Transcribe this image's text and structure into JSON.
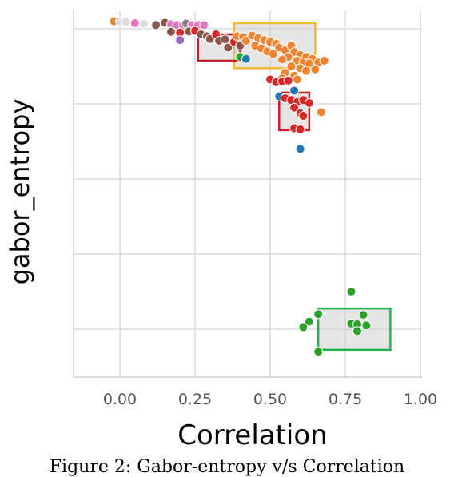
{
  "caption": "Figure 2: Gabor-entropy v/s Correlation",
  "chart_data": {
    "type": "scatter",
    "title": "",
    "xlabel": "Correlation",
    "ylabel": "gabor_entropy",
    "xlim": [
      -0.15,
      1.0
    ],
    "ylim": [
      0,
      100
    ],
    "xticks": [
      "0.00",
      "0.25",
      "0.50",
      "0.75",
      "1.00"
    ],
    "xtick_values": [
      0.0,
      0.25,
      0.5,
      0.75,
      1.0
    ],
    "ytick_values": [
      20,
      40,
      60,
      80,
      100
    ],
    "grid": true,
    "colors": {
      "orange": "#ee8430",
      "red": "#d62728",
      "brown": "#8c564b",
      "pink": "#e377c2",
      "green": "#2ca02c",
      "blue": "#1f77b4",
      "purple": "#9467bd",
      "gray": "#888888",
      "light": "#dddddd"
    },
    "points": [
      {
        "x": -0.02,
        "y": 102.0,
        "color": "orange"
      },
      {
        "x": 0.0,
        "y": 102.0,
        "color": "light"
      },
      {
        "x": 0.02,
        "y": 101.8,
        "color": "light"
      },
      {
        "x": 0.05,
        "y": 101.5,
        "color": "pink"
      },
      {
        "x": 0.08,
        "y": 101.3,
        "color": "light"
      },
      {
        "x": 0.12,
        "y": 101.0,
        "color": "brown"
      },
      {
        "x": 0.15,
        "y": 101.6,
        "color": "brown"
      },
      {
        "x": 0.17,
        "y": 101.2,
        "color": "pink"
      },
      {
        "x": 0.19,
        "y": 101.0,
        "color": "pink"
      },
      {
        "x": 0.21,
        "y": 101.0,
        "color": "pink"
      },
      {
        "x": 0.22,
        "y": 101.4,
        "color": "gray"
      },
      {
        "x": 0.24,
        "y": 101.0,
        "color": "pink"
      },
      {
        "x": 0.26,
        "y": 101.0,
        "color": "pink"
      },
      {
        "x": 0.28,
        "y": 101.0,
        "color": "pink"
      },
      {
        "x": 0.17,
        "y": 99.2,
        "color": "brown"
      },
      {
        "x": 0.2,
        "y": 99.0,
        "color": "red"
      },
      {
        "x": 0.23,
        "y": 99.3,
        "color": "brown"
      },
      {
        "x": 0.2,
        "y": 97.0,
        "color": "purple"
      },
      {
        "x": 0.25,
        "y": 99.5,
        "color": "red"
      },
      {
        "x": 0.27,
        "y": 98.5,
        "color": "brown"
      },
      {
        "x": 0.29,
        "y": 98.0,
        "color": "brown"
      },
      {
        "x": 0.3,
        "y": 97.3,
        "color": "brown"
      },
      {
        "x": 0.32,
        "y": 98.5,
        "color": "red"
      },
      {
        "x": 0.33,
        "y": 96.8,
        "color": "brown"
      },
      {
        "x": 0.35,
        "y": 97.2,
        "color": "brown"
      },
      {
        "x": 0.36,
        "y": 95.0,
        "color": "brown"
      },
      {
        "x": 0.38,
        "y": 96.5,
        "color": "red"
      },
      {
        "x": 0.39,
        "y": 98.0,
        "color": "orange"
      },
      {
        "x": 0.4,
        "y": 95.5,
        "color": "brown"
      },
      {
        "x": 0.41,
        "y": 97.8,
        "color": "orange"
      },
      {
        "x": 0.42,
        "y": 96.8,
        "color": "orange"
      },
      {
        "x": 0.44,
        "y": 98.2,
        "color": "orange"
      },
      {
        "x": 0.46,
        "y": 97.5,
        "color": "orange"
      },
      {
        "x": 0.48,
        "y": 97.0,
        "color": "orange"
      },
      {
        "x": 0.5,
        "y": 96.5,
        "color": "orange"
      },
      {
        "x": 0.52,
        "y": 96.0,
        "color": "orange"
      },
      {
        "x": 0.45,
        "y": 95.5,
        "color": "orange"
      },
      {
        "x": 0.47,
        "y": 94.8,
        "color": "orange"
      },
      {
        "x": 0.49,
        "y": 94.0,
        "color": "orange"
      },
      {
        "x": 0.51,
        "y": 93.3,
        "color": "orange"
      },
      {
        "x": 0.53,
        "y": 95.0,
        "color": "orange"
      },
      {
        "x": 0.55,
        "y": 94.3,
        "color": "orange"
      },
      {
        "x": 0.57,
        "y": 95.5,
        "color": "orange"
      },
      {
        "x": 0.58,
        "y": 93.8,
        "color": "orange"
      },
      {
        "x": 0.6,
        "y": 93.0,
        "color": "orange"
      },
      {
        "x": 0.62,
        "y": 92.5,
        "color": "orange"
      },
      {
        "x": 0.64,
        "y": 92.0,
        "color": "orange"
      },
      {
        "x": 0.56,
        "y": 92.5,
        "color": "orange"
      },
      {
        "x": 0.54,
        "y": 91.8,
        "color": "orange"
      },
      {
        "x": 0.59,
        "y": 91.5,
        "color": "orange"
      },
      {
        "x": 0.61,
        "y": 91.0,
        "color": "orange"
      },
      {
        "x": 0.63,
        "y": 90.8,
        "color": "orange"
      },
      {
        "x": 0.66,
        "y": 91.0,
        "color": "orange"
      },
      {
        "x": 0.68,
        "y": 91.5,
        "color": "orange"
      },
      {
        "x": 0.57,
        "y": 90.0,
        "color": "orange"
      },
      {
        "x": 0.6,
        "y": 89.5,
        "color": "orange"
      },
      {
        "x": 0.62,
        "y": 88.8,
        "color": "orange"
      },
      {
        "x": 0.65,
        "y": 89.2,
        "color": "orange"
      },
      {
        "x": 0.55,
        "y": 88.3,
        "color": "orange"
      },
      {
        "x": 0.58,
        "y": 87.5,
        "color": "orange"
      },
      {
        "x": 0.54,
        "y": 86.8,
        "color": "orange"
      },
      {
        "x": 0.4,
        "y": 92.5,
        "color": "green"
      },
      {
        "x": 0.42,
        "y": 92.0,
        "color": "blue"
      },
      {
        "x": 0.5,
        "y": 86.5,
        "color": "red"
      },
      {
        "x": 0.52,
        "y": 85.8,
        "color": "red"
      },
      {
        "x": 0.54,
        "y": 86.0,
        "color": "red"
      },
      {
        "x": 0.56,
        "y": 86.2,
        "color": "red"
      },
      {
        "x": 0.59,
        "y": 86.5,
        "color": "orange"
      },
      {
        "x": 0.58,
        "y": 83.5,
        "color": "blue"
      },
      {
        "x": 0.53,
        "y": 82.0,
        "color": "blue"
      },
      {
        "x": 0.55,
        "y": 81.5,
        "color": "red"
      },
      {
        "x": 0.57,
        "y": 81.0,
        "color": "red"
      },
      {
        "x": 0.59,
        "y": 80.5,
        "color": "red"
      },
      {
        "x": 0.61,
        "y": 81.0,
        "color": "red"
      },
      {
        "x": 0.63,
        "y": 80.2,
        "color": "red"
      },
      {
        "x": 0.58,
        "y": 79.0,
        "color": "red"
      },
      {
        "x": 0.6,
        "y": 77.5,
        "color": "red"
      },
      {
        "x": 0.61,
        "y": 76.8,
        "color": "red"
      },
      {
        "x": 0.67,
        "y": 77.8,
        "color": "orange"
      },
      {
        "x": 0.58,
        "y": 73.5,
        "color": "red"
      },
      {
        "x": 0.6,
        "y": 73.2,
        "color": "red"
      },
      {
        "x": 0.6,
        "y": 68.0,
        "color": "blue"
      },
      {
        "x": 0.77,
        "y": 30.0,
        "color": "green"
      },
      {
        "x": 0.66,
        "y": 24.0,
        "color": "green"
      },
      {
        "x": 0.63,
        "y": 22.0,
        "color": "green"
      },
      {
        "x": 0.61,
        "y": 20.5,
        "color": "green"
      },
      {
        "x": 0.77,
        "y": 21.5,
        "color": "green"
      },
      {
        "x": 0.79,
        "y": 21.3,
        "color": "green"
      },
      {
        "x": 0.81,
        "y": 23.8,
        "color": "green"
      },
      {
        "x": 0.82,
        "y": 21.0,
        "color": "green"
      },
      {
        "x": 0.79,
        "y": 19.5,
        "color": "green"
      },
      {
        "x": 0.66,
        "y": 14.0,
        "color": "green"
      }
    ],
    "highlight_boxes": [
      {
        "color": "#f2b830",
        "x0": 0.38,
        "x1": 0.65,
        "y0": 89.5,
        "y1": 101.5
      },
      {
        "color": "#c0202a",
        "x0": 0.26,
        "x1": 0.4,
        "y0": 91.5,
        "y1": 98.5
      },
      {
        "color": "#d21e2a",
        "x0": 0.53,
        "x1": 0.63,
        "y0": 73.0,
        "y1": 83.0
      },
      {
        "color": "#2ab050",
        "x0": 0.66,
        "x1": 0.9,
        "y0": 14.5,
        "y1": 25.5
      }
    ]
  }
}
